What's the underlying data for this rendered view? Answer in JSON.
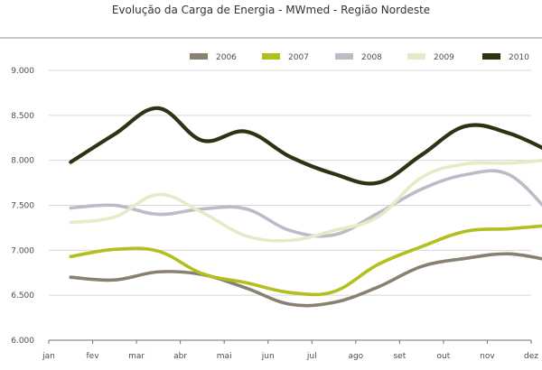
{
  "chart_data": {
    "type": "line",
    "title": "Evolução da Carga de Energia - MWmed - Região Nordeste",
    "xlabel": "",
    "ylabel": "",
    "x_tick_labels": [
      "jan",
      "fev",
      "mar",
      "abr",
      "mai",
      "jun",
      "jul",
      "ago",
      "set",
      "out",
      "nov",
      "dez"
    ],
    "y_tick_labels": [
      "6.000",
      "6.500",
      "7.000",
      "7.500",
      "8.000",
      "8.500",
      "9.000"
    ],
    "ylim": [
      6000,
      9000
    ],
    "grid": "horizontal",
    "legend_position": "top-right",
    "series": [
      {
        "name": "2006",
        "color": "#888070",
        "values": [
          6700,
          6670,
          6760,
          6730,
          6580,
          6400,
          6420,
          6590,
          6820,
          6910,
          6960,
          6880
        ]
      },
      {
        "name": "2007",
        "color": "#b3bf1f",
        "values": [
          6930,
          7010,
          6990,
          6740,
          6640,
          6530,
          6540,
          6840,
          7040,
          7210,
          7240,
          7280
        ]
      },
      {
        "name": "2008",
        "color": "#bcbcc8",
        "values": [
          7470,
          7500,
          7400,
          7460,
          7460,
          7220,
          7170,
          7410,
          7680,
          7840,
          7840,
          7370
        ]
      },
      {
        "name": "2009",
        "color": "#e3ebc7",
        "values": [
          7310,
          7370,
          7620,
          7420,
          7160,
          7110,
          7220,
          7370,
          7810,
          7960,
          7970,
          8010
        ]
      },
      {
        "name": "2010",
        "color": "#2a3514",
        "values": [
          7980,
          8290,
          8580,
          8220,
          8320,
          8040,
          7850,
          7750,
          8060,
          8380,
          8300,
          8080
        ]
      }
    ]
  }
}
